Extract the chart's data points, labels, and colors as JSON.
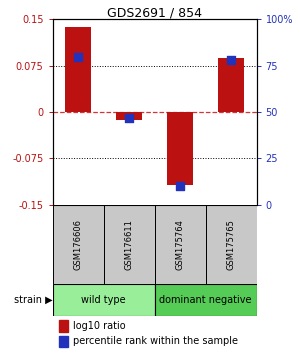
{
  "title": "GDS2691 / 854",
  "samples": [
    "GSM176606",
    "GSM176611",
    "GSM175764",
    "GSM175765"
  ],
  "log10_ratio": [
    0.138,
    -0.012,
    -0.118,
    0.087
  ],
  "percentile_rank": [
    80,
    47,
    10,
    78
  ],
  "groups": [
    {
      "label": "wild type",
      "samples": [
        0,
        1
      ],
      "color": "#99ee99"
    },
    {
      "label": "dominant negative",
      "samples": [
        2,
        3
      ],
      "color": "#55cc55"
    }
  ],
  "ylim": [
    -0.15,
    0.15
  ],
  "yticks_left": [
    -0.15,
    -0.075,
    0,
    0.075,
    0.15
  ],
  "yticks_right": [
    0,
    25,
    50,
    75,
    100
  ],
  "bar_color": "#bb1111",
  "square_color": "#2233bb",
  "grid_hlines": [
    -0.075,
    0.075
  ],
  "zero_line_color": "#cc1111",
  "bar_width": 0.5,
  "square_size": 28,
  "background_color": "#ffffff",
  "sample_box_color": "#c8c8c8",
  "legend_red_label": "log10 ratio",
  "legend_blue_label": "percentile rank within the sample",
  "strain_label": "strain"
}
